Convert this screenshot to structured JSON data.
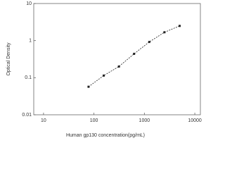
{
  "chart_data": {
    "type": "line",
    "x_label": "Human gp130 concentration(pg/mL)",
    "y_label": "Optical Density",
    "x": [
      78.125,
      156.25,
      312.5,
      625,
      1250,
      2500,
      5000
    ],
    "series": [
      {
        "color": "#222222",
        "values": [
          0.057,
          0.114,
          0.2,
          0.44,
          0.92,
          1.68,
          2.49
        ]
      }
    ],
    "xlim": [
      6.4,
      12900
    ],
    "xticks": [
      10,
      100,
      1000,
      10000
    ],
    "ylim": [
      0.01,
      10
    ],
    "yticks": [
      0.01,
      0.1,
      1,
      10
    ],
    "x_log": true,
    "y_log": true,
    "grid": false
  }
}
